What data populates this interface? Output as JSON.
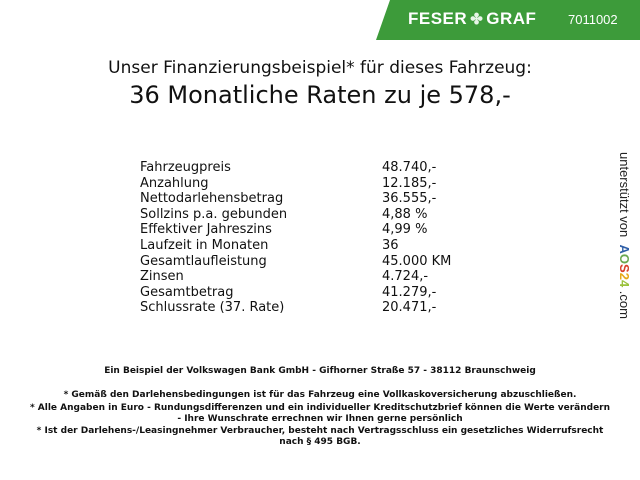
{
  "header": {
    "brand": "FESER",
    "brand2": "GRAF",
    "code": "7011002",
    "accent": "#3d9b3a"
  },
  "title": {
    "line1": "Unser Finanzierungsbeispiel* für dieses Fahrzeug:",
    "line2": "36 Monatliche Raten zu je 578,-"
  },
  "rows": [
    {
      "label": "Fahrzeugpreis",
      "value": "48.740,-"
    },
    {
      "label": "Anzahlung",
      "value": "12.185,-"
    },
    {
      "label": "Nettodarlehensbetrag",
      "value": "36.555,-"
    },
    {
      "label": "Sollzins p.a. gebunden",
      "value": "4,88 %"
    },
    {
      "label": "Effektiver Jahreszins",
      "value": "4,99 %"
    },
    {
      "label": "Laufzeit in Monaten",
      "value": "36"
    },
    {
      "label": "Gesamtlaufleistung",
      "value": "45.000 KM"
    },
    {
      "label": "Zinsen",
      "value": "4.724,-"
    },
    {
      "label": "Gesamtbetrag",
      "value": "41.279,-"
    },
    {
      "label": "Schlussrate (37. Rate)",
      "value": "20.471,-"
    }
  ],
  "side": {
    "text": "unterstützt von",
    "a": "A",
    "o": "O",
    "s": "S",
    "n2": "2",
    "n4": "4",
    "com": ".com"
  },
  "footer": {
    "bank": "Ein Beispiel der Volkswagen Bank GmbH - Gifhorner Straße 57 - 38112 Braunschweig",
    "note1": "* Gemäß den Darlehensbedingungen ist für das Fahrzeug eine Vollkaskoversicherung abzuschließen.",
    "note2a": "* Alle Angaben in Euro - Rundungsdifferenzen und ein individueller Kreditschutzbrief können die Werte verändern",
    "note2b": "- Ihre Wunschrate errechnen wir Ihnen gerne persönlich",
    "note3a": "* Ist der Darlehens-/Leasingnehmer Verbraucher, besteht nach Vertragsschluss ein gesetzliches Widerrufsrecht",
    "note3b": "nach § 495 BGB."
  }
}
